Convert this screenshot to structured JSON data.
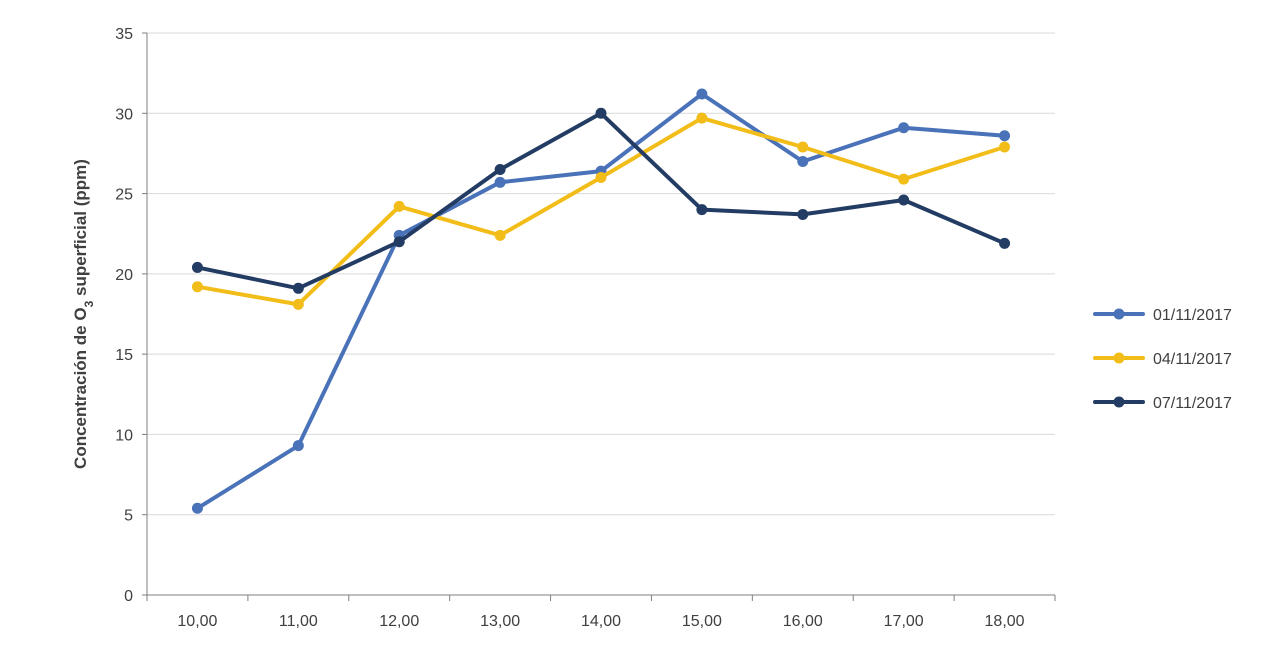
{
  "chart_data": {
    "type": "line",
    "title": "",
    "xlabel": "",
    "ylabel": "Concentración de O3 superficial (ppm)",
    "ylabel_parts": {
      "before": "Concentración de O",
      "subscript": "3",
      "after": " superficial (ppm)"
    },
    "categories": [
      "10,00",
      "11,00",
      "12,00",
      "13,00",
      "14,00",
      "15,00",
      "16,00",
      "17,00",
      "18,00"
    ],
    "ylim": [
      0,
      35
    ],
    "yticks": [
      0,
      5,
      10,
      15,
      20,
      25,
      30,
      35
    ],
    "grid": "horizontal",
    "legend_position": "right",
    "series": [
      {
        "name": "01/11/2017",
        "color": "#4a72b8",
        "values": [
          5.4,
          9.3,
          22.4,
          25.7,
          26.4,
          31.2,
          27.0,
          29.1,
          28.6
        ]
      },
      {
        "name": "04/11/2017",
        "color": "#f2bd19",
        "values": [
          19.2,
          18.1,
          24.2,
          22.4,
          26.0,
          29.7,
          27.9,
          25.9,
          27.9
        ]
      },
      {
        "name": "07/11/2017",
        "color": "#233c63",
        "values": [
          20.4,
          19.1,
          22.0,
          26.5,
          30.0,
          24.0,
          23.7,
          24.6,
          21.9
        ]
      }
    ]
  }
}
